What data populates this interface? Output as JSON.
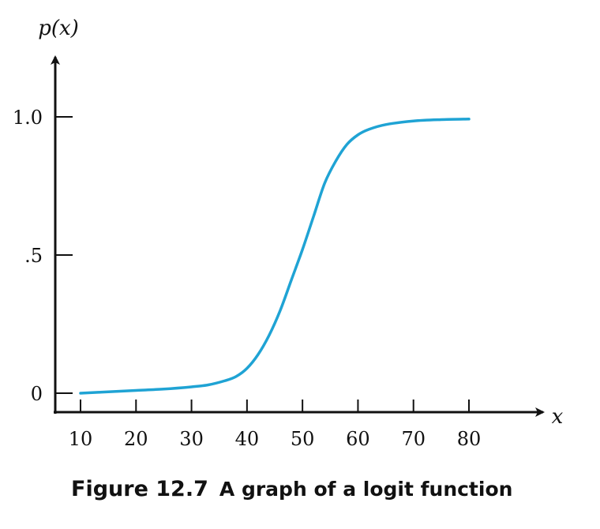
{
  "chart_data": {
    "type": "line",
    "xlabel": "x",
    "ylabel": "p(x)",
    "x_ticks": [
      "10",
      "20",
      "30",
      "40",
      "50",
      "60",
      "70",
      "80"
    ],
    "x_tick_values": [
      10,
      20,
      30,
      40,
      50,
      60,
      70,
      80
    ],
    "y_ticks": [
      "0",
      ".5",
      "1.0"
    ],
    "y_tick_values": [
      0,
      0.5,
      1.0
    ],
    "xlim": [
      5,
      90
    ],
    "ylim": [
      -0.07,
      1.25
    ],
    "grid": false,
    "line_color": "#1fa3d4",
    "series": [
      {
        "x": [
          10,
          15,
          20,
          25,
          30,
          33,
          36,
          38,
          40,
          42,
          44,
          46,
          48,
          50,
          52,
          54,
          56,
          58,
          60,
          62,
          65,
          70,
          75,
          80
        ],
        "y": [
          0.0,
          0.005,
          0.01,
          0.015,
          0.023,
          0.03,
          0.045,
          0.06,
          0.09,
          0.14,
          0.21,
          0.3,
          0.41,
          0.52,
          0.64,
          0.76,
          0.84,
          0.9,
          0.935,
          0.955,
          0.972,
          0.985,
          0.99,
          0.992
        ]
      }
    ]
  },
  "caption": {
    "figure_number": "Figure 12.7",
    "title": "A graph of a logit function"
  }
}
